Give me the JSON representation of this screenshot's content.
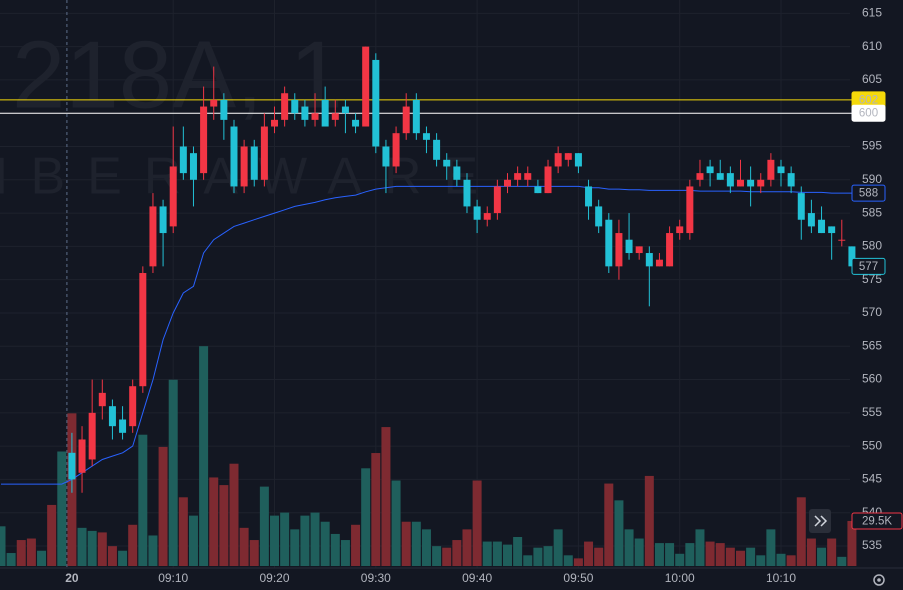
{
  "chart_data": {
    "type": "candlestick",
    "watermark": "218A, 1",
    "watermark_name": "IBERAWARE",
    "up_color": "#f23645",
    "down_color": "#22c1d6",
    "ylim": [
      532,
      617
    ],
    "yticks": [
      535,
      540,
      545,
      550,
      555,
      560,
      565,
      570,
      575,
      580,
      585,
      590,
      595,
      600,
      605,
      610,
      615
    ],
    "xticks": [
      {
        "value": 7,
        "label": "20"
      },
      {
        "value": 17,
        "label": "09:10"
      },
      {
        "value": 27,
        "label": "09:20"
      },
      {
        "value": 37,
        "label": "09:30"
      },
      {
        "value": 47,
        "label": "09:40"
      },
      {
        "value": 57,
        "label": "09:50"
      },
      {
        "value": 67,
        "label": "10:00"
      },
      {
        "value": 77,
        "label": "10:10"
      }
    ],
    "grid": true,
    "open": [
      null,
      null,
      null,
      null,
      null,
      null,
      null,
      549,
      546,
      548,
      556,
      556,
      554,
      553,
      559,
      577,
      586,
      583,
      595,
      594,
      591,
      601,
      602,
      598,
      589,
      595,
      590,
      598,
      599,
      602,
      601,
      599,
      602,
      599,
      601,
      599,
      598,
      608,
      595,
      592,
      597,
      602,
      597,
      596,
      593,
      592,
      590,
      586,
      584,
      585,
      589,
      590,
      590,
      589,
      588,
      592,
      593,
      594,
      589,
      586,
      584,
      577,
      581,
      579,
      579,
      577,
      577,
      582,
      582,
      590,
      592,
      591,
      591,
      589,
      590,
      589,
      590,
      592,
      591,
      588,
      585,
      584,
      583,
      581,
      580
    ],
    "high": [
      null,
      null,
      null,
      null,
      null,
      null,
      null,
      552,
      553,
      560,
      560,
      557,
      556,
      560,
      577,
      588,
      587,
      598,
      598,
      595,
      604,
      607,
      603,
      599,
      596,
      596,
      600,
      601,
      604,
      603,
      602,
      603,
      604,
      602,
      602,
      600,
      610,
      609,
      596,
      598,
      603,
      603,
      598,
      597,
      594,
      593,
      591,
      587,
      586,
      590,
      591,
      592,
      592,
      590,
      593,
      595,
      594,
      594,
      590,
      587,
      585,
      584,
      585,
      580,
      580,
      579,
      583,
      584,
      590,
      593,
      593,
      593,
      592,
      593,
      592,
      591,
      594,
      593,
      592,
      589,
      587,
      586,
      583,
      584,
      580
    ],
    "low": [
      null,
      null,
      null,
      null,
      null,
      null,
      null,
      543,
      543,
      547,
      554,
      551,
      551,
      552,
      558,
      576,
      577,
      582,
      590,
      586,
      590,
      599,
      596,
      588,
      588,
      589,
      589,
      597,
      598,
      599,
      598,
      598,
      598,
      598,
      597,
      597,
      598,
      594,
      588,
      591,
      596,
      596,
      594,
      592,
      590,
      589,
      585,
      582,
      583,
      584,
      588,
      589,
      589,
      588,
      588,
      591,
      592,
      591,
      584,
      582,
      576,
      575,
      578,
      578,
      571,
      577,
      577,
      581,
      581,
      589,
      589,
      590,
      588,
      589,
      586,
      588,
      589,
      589,
      588,
      581,
      582,
      582,
      578,
      580,
      577
    ],
    "close": [
      null,
      null,
      null,
      null,
      null,
      null,
      null,
      545,
      551,
      555,
      558,
      553,
      552,
      559,
      576,
      586,
      582,
      592,
      591,
      590,
      601,
      602,
      599,
      589,
      595,
      590,
      598,
      599,
      603,
      600,
      599,
      600,
      598,
      600,
      600,
      598,
      610,
      595,
      592,
      597,
      601,
      597,
      596,
      593,
      592,
      590,
      586,
      584,
      585,
      589,
      590,
      591,
      591,
      588,
      592,
      594,
      594,
      592,
      586,
      583,
      577,
      582,
      579,
      580,
      577,
      578,
      582,
      583,
      589,
      591,
      591,
      590,
      589,
      590,
      589,
      590,
      593,
      591,
      589,
      584,
      583,
      582,
      582,
      581,
      577
    ],
    "volume": [
      26000,
      8500,
      17000,
      18000,
      10000,
      40000,
      75000,
      100000,
      25000,
      23000,
      22000,
      13000,
      10000,
      27000,
      86000,
      20000,
      78000,
      122000,
      45000,
      33000,
      144000,
      58000,
      53000,
      67000,
      25000,
      17000,
      52000,
      33000,
      35000,
      24000,
      33000,
      35000,
      29000,
      21000,
      17000,
      27000,
      64000,
      74000,
      91000,
      56000,
      29000,
      29000,
      24000,
      13000,
      12000,
      17000,
      24000,
      56000,
      16000,
      16000,
      14000,
      19000,
      7000,
      12000,
      13000,
      24000,
      7000,
      5000,
      16000,
      12000,
      54000,
      43000,
      24000,
      18000,
      59000,
      15000,
      15000,
      8000,
      15000,
      24000,
      16000,
      15000,
      12000,
      10000,
      12000,
      7000,
      24000,
      8000,
      7000,
      45000,
      18000,
      12000,
      18000,
      6000,
      29500
    ],
    "volume_colors": [
      "#1f5f5c",
      "#1f5f5c",
      "#7e2a31",
      "#7e2a31",
      "#1f5f5c",
      "#7e2a31",
      "#1f5f5c",
      "#7e2a31",
      "#1f5f5c",
      "#1f5f5c",
      "#7e2a31",
      "#7e2a31",
      "#1f5f5c",
      "#7e2a31",
      "#1f5f5c",
      "#1f5f5c",
      "#7e2a31",
      "#1f5f5c",
      "#7e2a31",
      "#1f5f5c",
      "#1f5f5c",
      "#7e2a31",
      "#7e2a31",
      "#7e2a31",
      "#7e2a31",
      "#7e2a31",
      "#1f5f5c",
      "#1f5f5c",
      "#1f5f5c",
      "#1f5f5c",
      "#1f5f5c",
      "#1f5f5c",
      "#1f5f5c",
      "#1f5f5c",
      "#1f5f5c",
      "#7e2a31",
      "#1f5f5c",
      "#7e2a31",
      "#7e2a31",
      "#1f5f5c",
      "#7e2a31",
      "#1f5f5c",
      "#1f5f5c",
      "#1f5f5c",
      "#7e2a31",
      "#7e2a31",
      "#7e2a31",
      "#7e2a31",
      "#1f5f5c",
      "#1f5f5c",
      "#1f5f5c",
      "#1f5f5c",
      "#1f5f5c",
      "#1f5f5c",
      "#1f5f5c",
      "#1f5f5c",
      "#1f5f5c",
      "#7e2a31",
      "#7e2a31",
      "#7e2a31",
      "#7e2a31",
      "#1f5f5c",
      "#1f5f5c",
      "#1f5f5c",
      "#7e2a31",
      "#1f5f5c",
      "#1f5f5c",
      "#1f5f5c",
      "#1f5f5c",
      "#1f5f5c",
      "#7e2a31",
      "#7e2a31",
      "#7e2a31",
      "#7e2a31",
      "#1f5f5c",
      "#1f5f5c",
      "#1f5f5c",
      "#1f5f5c",
      "#7e2a31",
      "#7e2a31",
      "#7e2a31",
      "#1f5f5c",
      "#7e2a31",
      "#1f5f5c",
      "#7e2a31"
    ],
    "vlim": [
      0,
      150000
    ],
    "volume_last_label": "29.5K",
    "vwap": {
      "color": "#2962ff",
      "values": [
        544.3,
        544.3,
        544.3,
        544.3,
        544.3,
        544.3,
        544.3,
        545,
        546,
        547,
        548,
        548.5,
        549,
        550,
        555,
        560,
        566,
        570,
        573,
        574,
        579,
        581,
        582,
        583,
        583.5,
        584,
        584.5,
        585,
        585.5,
        586,
        586.3,
        586.6,
        587,
        587.3,
        587.5,
        587.7,
        588.2,
        588.6,
        588.8,
        589,
        589,
        589,
        589,
        589,
        589,
        589,
        589,
        589,
        589,
        589,
        589,
        589,
        589,
        589,
        589,
        589,
        589,
        589,
        588.8,
        588.8,
        588.6,
        588.6,
        588.5,
        588.5,
        588.4,
        588.4,
        588.4,
        588.4,
        588.4,
        588.3,
        588.3,
        588.3,
        588.3,
        588.3,
        588.2,
        588.2,
        588.2,
        588.2,
        588.2,
        588.1,
        588.1,
        588.1,
        588,
        588,
        588
      ]
    },
    "hlines": [
      {
        "value": 602,
        "color": "#f5d90a"
      },
      {
        "value": 600,
        "color": "#ffffff"
      }
    ]
  }
}
